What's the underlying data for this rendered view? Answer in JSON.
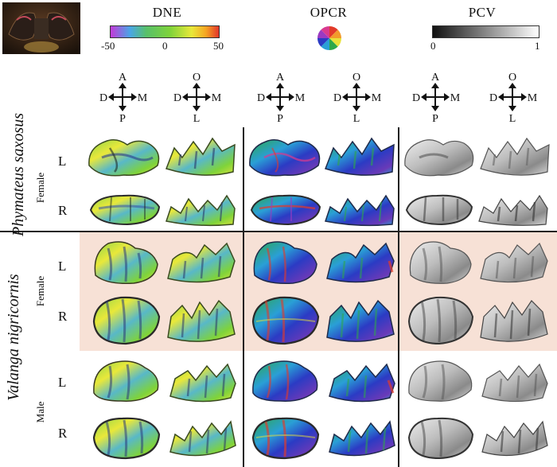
{
  "legend": {
    "dne": {
      "title": "DNE",
      "ticks": [
        "-50",
        "0",
        "50"
      ],
      "colors": [
        "#c23ad8",
        "#4aa6e6",
        "#8cd44c",
        "#7fd33a",
        "#e9e83a",
        "#f5a623",
        "#e2352b"
      ]
    },
    "opcr": {
      "title": "OPCR",
      "colors": [
        "#e23a2a",
        "#f29a2b",
        "#e8e23a",
        "#2ea84a",
        "#2a9fd6",
        "#2b3bc4",
        "#9a3ac2",
        "#d93a8f"
      ]
    },
    "pcv": {
      "title": "PCV",
      "ticks": [
        "0",
        "1"
      ],
      "colors": [
        "#111111",
        "#ffffff"
      ]
    }
  },
  "compasses": [
    {
      "top": "A",
      "bottom": "P",
      "left": "D",
      "right": "M"
    },
    {
      "top": "O",
      "bottom": "L",
      "left": "D",
      "right": "M"
    },
    {
      "top": "A",
      "bottom": "P",
      "left": "D",
      "right": "M"
    },
    {
      "top": "O",
      "bottom": "L",
      "left": "D",
      "right": "M"
    },
    {
      "top": "A",
      "bottom": "P",
      "left": "D",
      "right": "M"
    },
    {
      "top": "O",
      "bottom": "L",
      "left": "D",
      "right": "M"
    }
  ],
  "species": [
    {
      "name": "Phymateus saxosus"
    },
    {
      "name": "Valanga nigricornis"
    }
  ],
  "groups": [
    {
      "sex": "Female",
      "sides": [
        "L",
        "R"
      ]
    },
    {
      "sex": "Female",
      "sides": [
        "L",
        "R"
      ]
    },
    {
      "sex": "Male",
      "sides": [
        "L",
        "R"
      ]
    }
  ],
  "colors": {
    "highlight_band": "#f7e1d6",
    "divider": "#222222"
  }
}
